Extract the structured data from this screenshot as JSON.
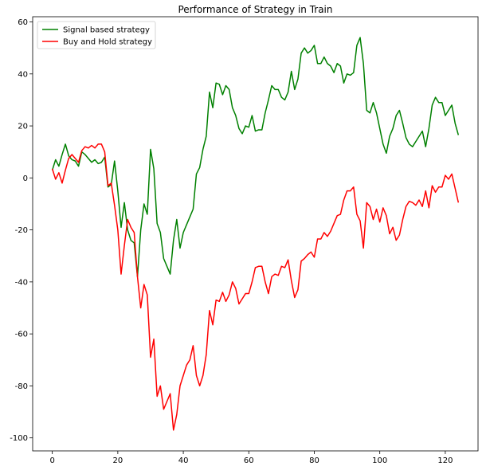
{
  "chart_data": {
    "type": "line",
    "title": "Performance of Strategy in Train",
    "xlabel": "",
    "ylabel": "",
    "xlim": [
      -6,
      130
    ],
    "ylim": [
      -105,
      62
    ],
    "x_ticks": [
      0,
      20,
      40,
      60,
      80,
      100,
      120
    ],
    "y_ticks": [
      -100,
      -80,
      -60,
      -40,
      -20,
      0,
      20,
      40,
      60
    ],
    "grid": false,
    "legend_position": "top-left",
    "series": [
      {
        "name": "Signal based strategy",
        "color": "#008000",
        "x": [
          0,
          1,
          2,
          3,
          4,
          5,
          6,
          7,
          8,
          9,
          10,
          11,
          12,
          13,
          14,
          15,
          16,
          17,
          18,
          19,
          20,
          21,
          22,
          23,
          24,
          25,
          26,
          27,
          28,
          29,
          30,
          31,
          32,
          33,
          34,
          35,
          36,
          37,
          38,
          39,
          40,
          41,
          42,
          43,
          44,
          45,
          46,
          47,
          48,
          49,
          50,
          51,
          52,
          53,
          54,
          55,
          56,
          57,
          58,
          59,
          60,
          61,
          62,
          63,
          64,
          65,
          66,
          67,
          68,
          69,
          70,
          71,
          72,
          73,
          74,
          75,
          76,
          77,
          78,
          79,
          80,
          81,
          82,
          83,
          84,
          85,
          86,
          87,
          88,
          89,
          90,
          91,
          92,
          93,
          94,
          95,
          96,
          97,
          98,
          99,
          100,
          101,
          102,
          103,
          104,
          105,
          106,
          107,
          108,
          109,
          110,
          111,
          112,
          113,
          114,
          115,
          116,
          117,
          118,
          119,
          120,
          121,
          122,
          123,
          124
        ],
        "values": [
          3,
          7,
          4.5,
          9,
          13,
          8.5,
          7,
          6.5,
          4.5,
          10,
          9,
          7.5,
          6,
          7,
          5.5,
          6,
          8,
          -3.5,
          -2.5,
          6.5,
          -5,
          -19,
          -9.5,
          -20,
          -24,
          -25,
          -38,
          -20,
          -10,
          -14,
          11,
          3.5,
          -17.5,
          -21,
          -31,
          -34,
          -37,
          -24,
          -16,
          -27,
          -21,
          -18,
          -15,
          -12,
          1.5,
          4,
          11,
          16,
          33,
          27,
          36.5,
          36,
          32,
          35.5,
          34,
          27,
          24,
          19,
          17,
          20,
          19.5,
          24,
          18,
          18.5,
          18.5,
          25,
          30,
          35.5,
          34,
          34,
          31,
          30,
          33,
          41,
          34,
          38,
          48,
          50,
          48,
          49,
          51,
          44,
          44,
          46.5,
          44,
          43,
          40.5,
          44,
          43,
          36.5,
          40,
          39.5,
          40.5,
          51,
          54,
          44,
          26,
          25,
          29,
          25,
          19,
          13,
          9.5,
          16,
          19,
          24,
          26,
          21,
          15.5,
          13,
          12,
          14,
          16,
          18,
          12,
          19,
          28,
          31,
          29,
          29,
          24,
          26,
          28,
          21,
          16.5
        ]
      },
      {
        "name": "Buy and Hold strategy",
        "color": "#ff0000",
        "x": [
          0,
          1,
          2,
          3,
          4,
          5,
          6,
          7,
          8,
          9,
          10,
          11,
          12,
          13,
          14,
          15,
          16,
          17,
          18,
          19,
          20,
          21,
          22,
          23,
          24,
          25,
          26,
          27,
          28,
          29,
          30,
          31,
          32,
          33,
          34,
          35,
          36,
          37,
          38,
          39,
          40,
          41,
          42,
          43,
          44,
          45,
          46,
          47,
          48,
          49,
          50,
          51,
          52,
          53,
          54,
          55,
          56,
          57,
          58,
          59,
          60,
          61,
          62,
          63,
          64,
          65,
          66,
          67,
          68,
          69,
          70,
          71,
          72,
          73,
          74,
          75,
          76,
          77,
          78,
          79,
          80,
          81,
          82,
          83,
          84,
          85,
          86,
          87,
          88,
          89,
          90,
          91,
          92,
          93,
          94,
          95,
          96,
          97,
          98,
          99,
          100,
          101,
          102,
          103,
          104,
          105,
          106,
          107,
          108,
          109,
          110,
          111,
          112,
          113,
          114,
          115,
          116,
          117,
          118,
          119,
          120,
          121,
          122,
          123,
          124
        ],
        "values": [
          3.5,
          -0.5,
          2,
          -2,
          3,
          7.5,
          9,
          7.5,
          6,
          10.5,
          12,
          11.5,
          12.5,
          11.5,
          13,
          13,
          10,
          -3,
          -2,
          -10.5,
          -20,
          -37,
          -26,
          -16,
          -19,
          -21,
          -38,
          -50,
          -41,
          -45,
          -69,
          -62,
          -84,
          -80,
          -89,
          -86,
          -83,
          -97,
          -91,
          -80,
          -76,
          -72,
          -70,
          -64.5,
          -76,
          -80,
          -76,
          -68,
          -51,
          -56.5,
          -47,
          -47.5,
          -44,
          -47.5,
          -45,
          -40,
          -42.5,
          -48.5,
          -46.5,
          -44.5,
          -44.5,
          -40,
          -34.5,
          -34,
          -34,
          -40,
          -44.5,
          -38,
          -37,
          -37.5,
          -34,
          -34.5,
          -31.5,
          -39.5,
          -46,
          -43,
          -32,
          -31,
          -29.5,
          -28.5,
          -30.5,
          -23.5,
          -23.5,
          -21,
          -22.5,
          -20.5,
          -17.5,
          -14.5,
          -14,
          -8.5,
          -5,
          -5,
          -3.5,
          -14,
          -16.5,
          -27,
          -9.5,
          -11,
          -16,
          -12,
          -17,
          -11.5,
          -14.5,
          -21.5,
          -19,
          -24,
          -22,
          -16,
          -11,
          -9,
          -9.5,
          -10.5,
          -8.5,
          -11,
          -5,
          -11.5,
          -3,
          -5.5,
          -3.5,
          -3.5,
          1,
          -0.5,
          1.5,
          -4,
          -9.5
        ]
      }
    ]
  }
}
